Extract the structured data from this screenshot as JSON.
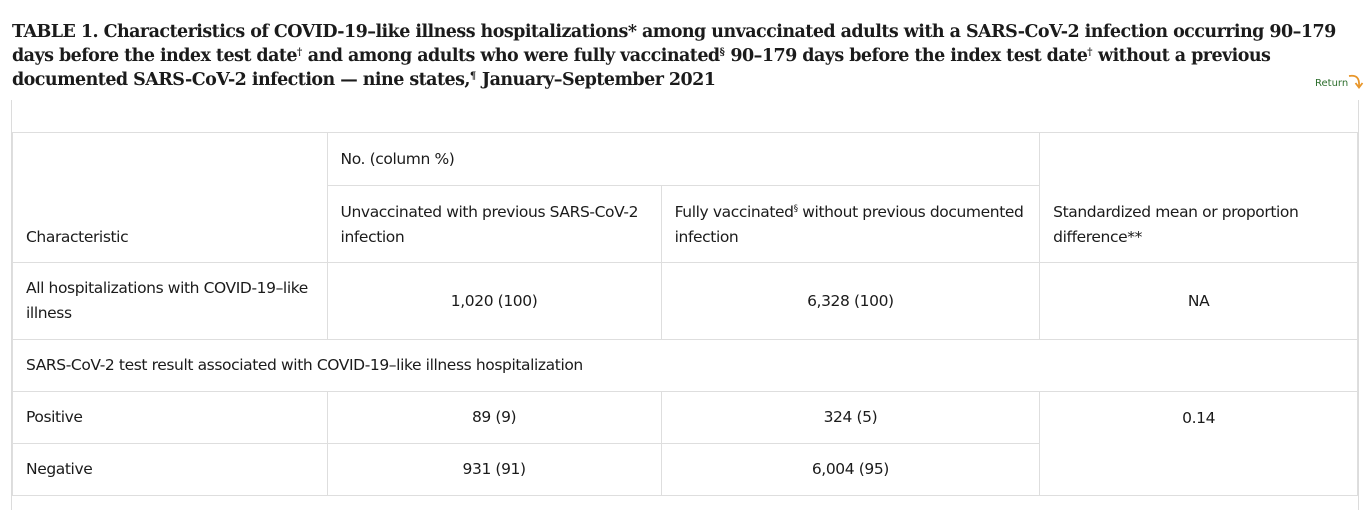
{
  "title": {
    "part1": "TABLE 1. Characteristics of COVID-19–like illness hospitalizations* among unvaccinated adults with a SARS-CoV-2 infection occurring 90–179 days before the index test date",
    "mark1": "†",
    "part2": " and among adults who were fully vaccinated",
    "mark2": "§",
    "part3": " 90–179 days before the index test date",
    "mark3": "†",
    "part4": " without a previous documented SARS-CoV-2 infection — nine states,",
    "mark4": "¶",
    "part5": " January–September 2021"
  },
  "return_link": {
    "label": "Return",
    "icon": "return-arrow-icon"
  },
  "table": {
    "group_header": "No. (column %)",
    "headers": {
      "characteristic": "Characteristic",
      "unvaccinated": "Unvaccinated with previous SARS-CoV-2 infection",
      "vaccinated_pre": "Fully vaccinated",
      "vaccinated_mark": "§",
      "vaccinated_post": " without previous documented infection",
      "difference": "Standardized mean or proportion difference**"
    },
    "rows": {
      "all": {
        "label": "All hospitalizations with COVID-19–like illness",
        "unvaccinated": "1,020 (100)",
        "vaccinated": "6,328 (100)",
        "difference": "NA"
      },
      "section": "SARS-CoV-2 test result associated with COVID-19–like illness hospitalization",
      "positive": {
        "label": "Positive",
        "unvaccinated": "89 (9)",
        "vaccinated": "324 (5)"
      },
      "negative": {
        "label": "Negative",
        "unvaccinated": "931 (91)",
        "vaccinated": "6,004 (95)"
      },
      "test_result_difference": "0.14"
    }
  }
}
